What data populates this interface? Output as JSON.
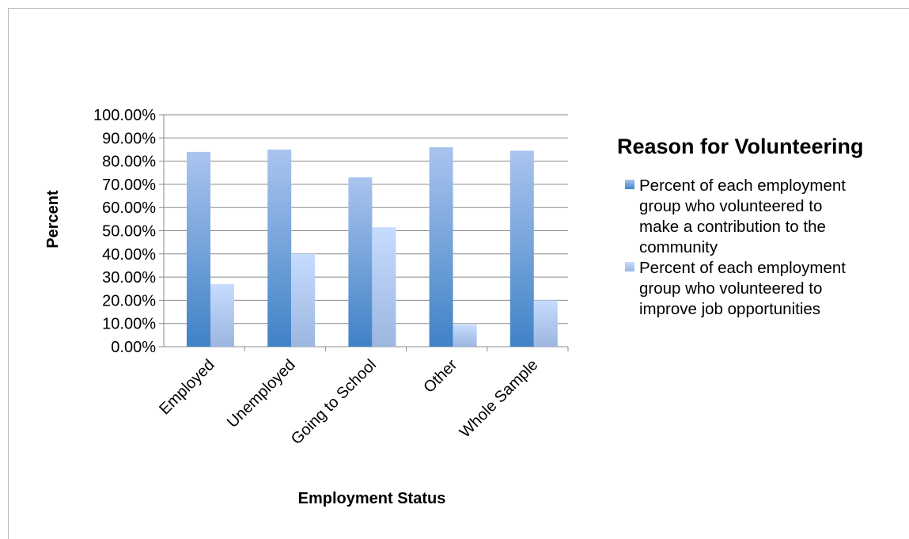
{
  "chart_data": {
    "type": "bar",
    "title": "",
    "xlabel": "Employment Status",
    "ylabel": "Percent",
    "ylim": [
      0,
      100
    ],
    "yticks": [
      0,
      10,
      20,
      30,
      40,
      50,
      60,
      70,
      80,
      90,
      100
    ],
    "ytick_labels": [
      "0.00%",
      "10.00%",
      "20.00%",
      "30.00%",
      "40.00%",
      "50.00%",
      "60.00%",
      "70.00%",
      "80.00%",
      "90.00%",
      "100.00%"
    ],
    "categories": [
      "Employed",
      "Unemployed",
      "Going to School",
      "Other",
      "Whole Sample"
    ],
    "legend_title": "Reason for Volunteering",
    "legend_placement": "right",
    "grid": true,
    "series": [
      {
        "name": "Percent of each employment group who volunteered to make a contribution to the community",
        "legend_lines": [
          "Percent of each employment",
          "group who volunteered to",
          "make a contribution to the",
          "community"
        ],
        "values": [
          84,
          85,
          73,
          86,
          84.5
        ],
        "color_top": "#aac4ee",
        "color_bottom": "#3f82c6"
      },
      {
        "name": "Percent of each employment group who volunteered to improve job opportunities",
        "legend_lines": [
          "Percent of each employment",
          "group who volunteered to",
          "improve job opportunities"
        ],
        "values": [
          27,
          40,
          51.5,
          9.5,
          20
        ],
        "color_top": "#c6dcff",
        "color_bottom": "#9cb6e0"
      }
    ]
  }
}
